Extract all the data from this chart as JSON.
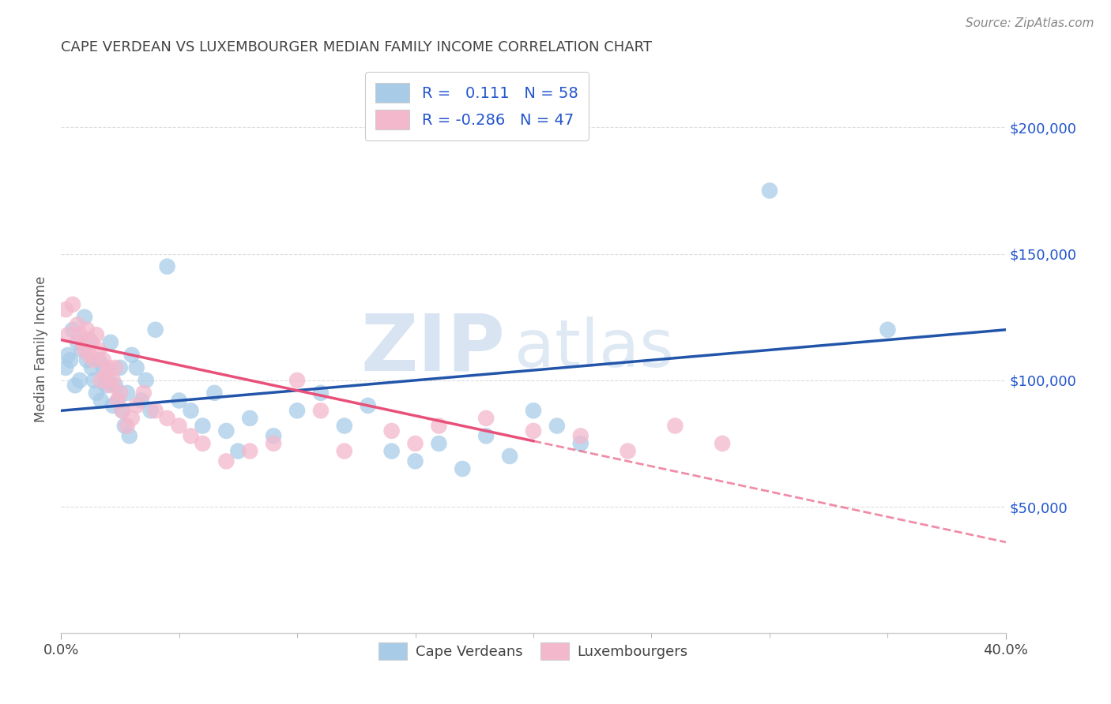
{
  "title": "CAPE VERDEAN VS LUXEMBOURGER MEDIAN FAMILY INCOME CORRELATION CHART",
  "source": "Source: ZipAtlas.com",
  "ylabel": "Median Family Income",
  "yticks": [
    50000,
    100000,
    150000,
    200000
  ],
  "ytick_labels": [
    "$50,000",
    "$100,000",
    "$150,000",
    "$200,000"
  ],
  "watermark_zip": "ZIP",
  "watermark_atlas": "atlas",
  "legend_label1": "Cape Verdeans",
  "legend_label2": "Luxembourgers",
  "r1": "0.111",
  "n1": "58",
  "r2": "-0.286",
  "n2": "47",
  "blue_color": "#a8cce8",
  "pink_color": "#f4b8cc",
  "blue_line_color": "#2255aa",
  "pink_line_color": "#e8507a",
  "legend_text_color": "#2255cc",
  "title_color": "#444444",
  "background_color": "#ffffff",
  "grid_color": "#dddddd",
  "blue_x": [
    0.2,
    0.3,
    0.4,
    0.5,
    0.6,
    0.7,
    0.8,
    0.9,
    1.0,
    1.1,
    1.2,
    1.3,
    1.4,
    1.5,
    1.6,
    1.7,
    1.8,
    1.9,
    2.0,
    2.1,
    2.2,
    2.3,
    2.4,
    2.5,
    2.6,
    2.7,
    2.8,
    2.9,
    3.0,
    3.2,
    3.4,
    3.6,
    3.8,
    4.0,
    4.5,
    5.0,
    5.5,
    6.0,
    6.5,
    7.0,
    7.5,
    8.0,
    9.0,
    10.0,
    11.0,
    12.0,
    13.0,
    14.0,
    15.0,
    16.0,
    17.0,
    18.0,
    19.0,
    20.0,
    21.0,
    22.0,
    30.0,
    35.0
  ],
  "blue_y": [
    105000,
    110000,
    108000,
    120000,
    98000,
    115000,
    100000,
    112000,
    125000,
    108000,
    116000,
    105000,
    100000,
    95000,
    108000,
    92000,
    105000,
    98000,
    100000,
    115000,
    90000,
    98000,
    92000,
    105000,
    88000,
    82000,
    95000,
    78000,
    110000,
    105000,
    92000,
    100000,
    88000,
    120000,
    145000,
    92000,
    88000,
    82000,
    95000,
    80000,
    72000,
    85000,
    78000,
    88000,
    95000,
    82000,
    90000,
    72000,
    68000,
    75000,
    65000,
    78000,
    70000,
    88000,
    82000,
    75000,
    175000,
    120000
  ],
  "pink_x": [
    0.2,
    0.3,
    0.5,
    0.7,
    0.8,
    0.9,
    1.0,
    1.1,
    1.2,
    1.3,
    1.4,
    1.5,
    1.6,
    1.7,
    1.8,
    1.9,
    2.0,
    2.1,
    2.2,
    2.3,
    2.4,
    2.5,
    2.6,
    2.8,
    3.0,
    3.2,
    3.5,
    4.0,
    4.5,
    5.0,
    5.5,
    6.0,
    7.0,
    8.0,
    9.0,
    10.0,
    11.0,
    12.0,
    14.0,
    15.0,
    16.0,
    18.0,
    20.0,
    22.0,
    24.0,
    26.0,
    28.0
  ],
  "pink_y": [
    128000,
    118000,
    130000,
    122000,
    118000,
    115000,
    112000,
    120000,
    110000,
    115000,
    108000,
    118000,
    112000,
    100000,
    108000,
    102000,
    105000,
    98000,
    100000,
    105000,
    92000,
    95000,
    88000,
    82000,
    85000,
    90000,
    95000,
    88000,
    85000,
    82000,
    78000,
    75000,
    68000,
    72000,
    75000,
    100000,
    88000,
    72000,
    80000,
    75000,
    82000,
    85000,
    80000,
    78000,
    72000,
    82000,
    75000
  ],
  "xlim": [
    0,
    40
  ],
  "ylim": [
    0,
    225000
  ],
  "xaxis_minor_ticks": [
    5,
    10,
    15,
    20,
    25,
    30,
    35
  ],
  "blue_line_x0": 0,
  "blue_line_y0": 88000,
  "blue_line_x1": 40,
  "blue_line_y1": 120000,
  "pink_line_x0": 0,
  "pink_line_y0": 116000,
  "pink_line_x1": 20,
  "pink_line_y1": 76000,
  "pink_dash_x0": 20,
  "pink_dash_y0": 76000,
  "pink_dash_x1": 40,
  "pink_dash_y1": 36000
}
